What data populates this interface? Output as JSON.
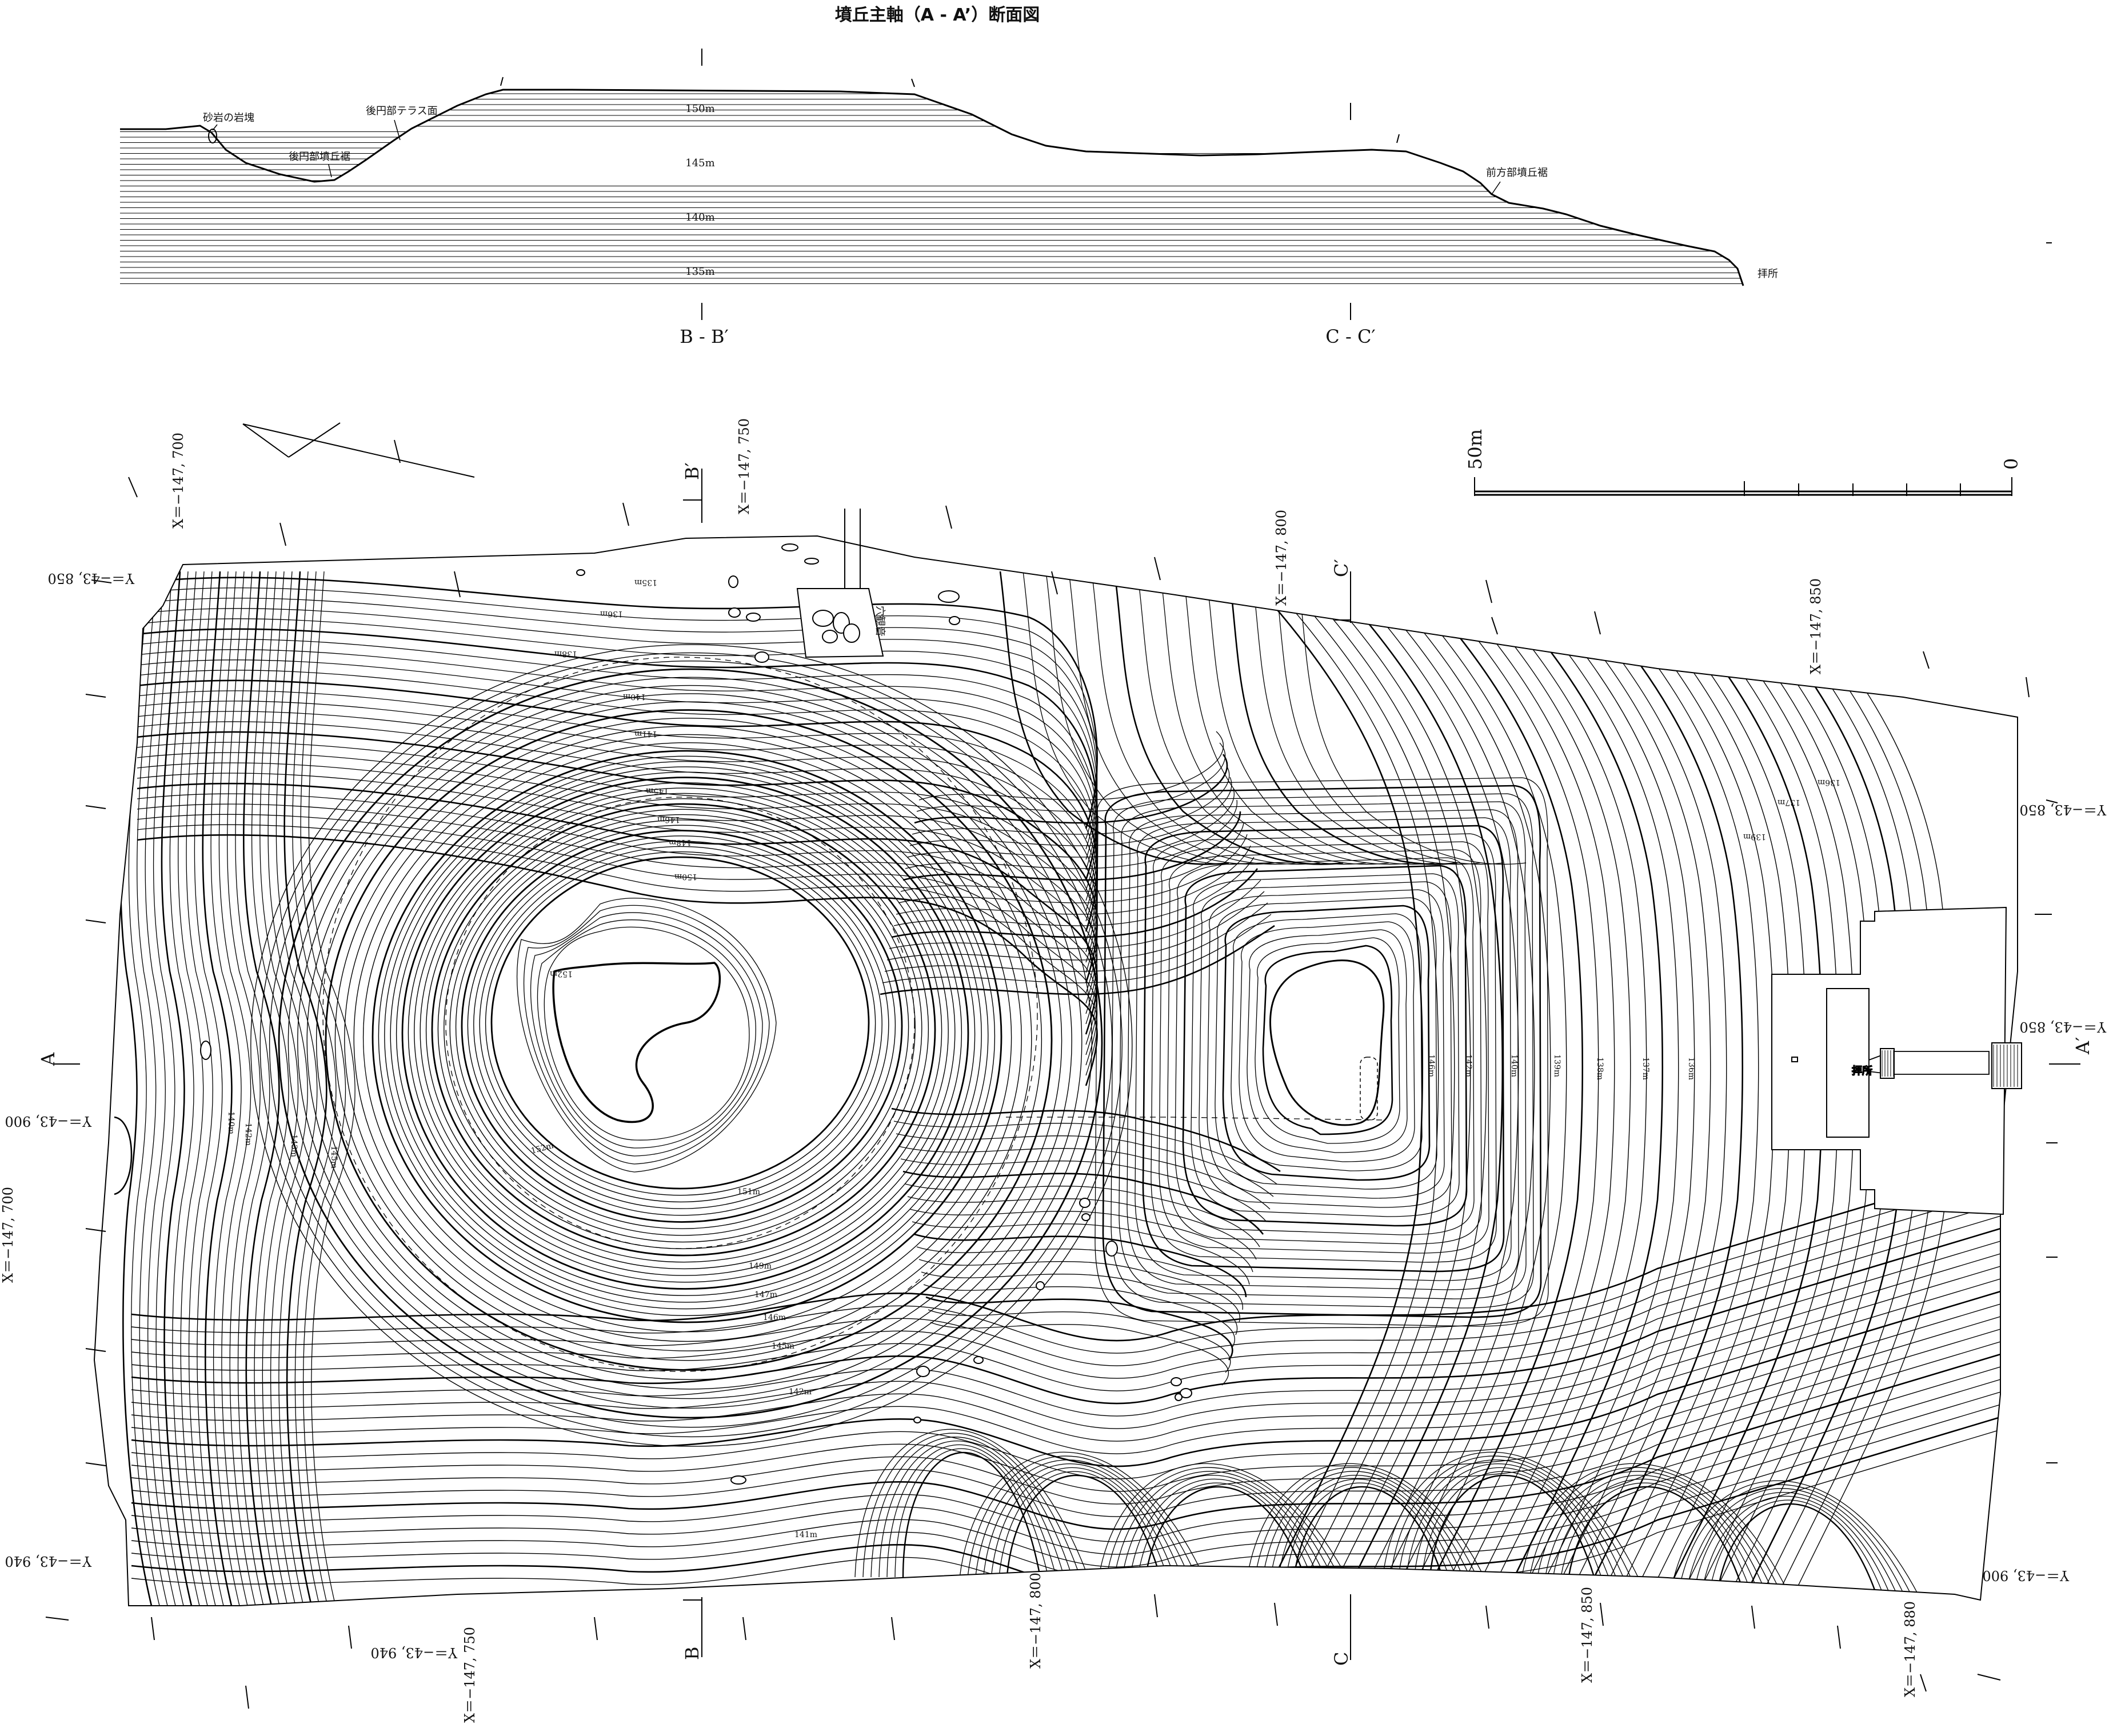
{
  "section": {
    "title": "墳丘主軸（A - A’）断面図",
    "elevations": [
      "150m",
      "145m",
      "140m",
      "135m"
    ],
    "annotations": {
      "sandstone": "砂岩の岩塊",
      "rear_terrace": "後円部テラス面",
      "rear_foot": "後円部墳丘裾",
      "front_foot": "前方部墳丘裾",
      "shrine": "拝所"
    },
    "markers": {
      "bb": "B - B′",
      "cc": "C - C′"
    }
  },
  "map": {
    "scale": {
      "left": "50m",
      "right": "0"
    },
    "section_markers": {
      "a": "A",
      "a_prime": "A′",
      "b": "B",
      "b_prime": "B′",
      "c": "C",
      "c_prime": "C′"
    },
    "shrine_label": "拝所",
    "cave_label": "穴観音",
    "coords": {
      "x700_top": "X＝−147, 700",
      "x750_top": "X＝−147, 750",
      "x800_top": "X＝−147, 800",
      "x850_top": "X＝−147, 850",
      "x700_left": "X＝−147, 700",
      "x750_bot": "X＝−147, 750",
      "x800_bot": "X＝−147, 800",
      "x850_bot": "X＝−147, 850",
      "x880_bot": "X＝−147, 880",
      "y850_tl": "Y＝−43, 850",
      "y900_l": "Y＝−43, 900",
      "y940_l": "Y＝−43, 940",
      "y940_b": "Y＝−43, 940",
      "y850_r1": "Y＝−43, 850",
      "y850_r2": "Y＝−43, 850",
      "y900_r": "Y＝−43, 900"
    },
    "contour_labels": {
      "c152": "152m",
      "c151": "151m",
      "c150": "150m",
      "c149": "149m",
      "c148": "148m",
      "c147": "147m",
      "c146": "146m",
      "c145": "145m",
      "c143": "143m",
      "c142": "142m",
      "c141": "141m",
      "c140": "140m",
      "c139": "139m",
      "c138": "138m",
      "c137": "137m",
      "c136": "136m",
      "c135": "135m"
    }
  }
}
